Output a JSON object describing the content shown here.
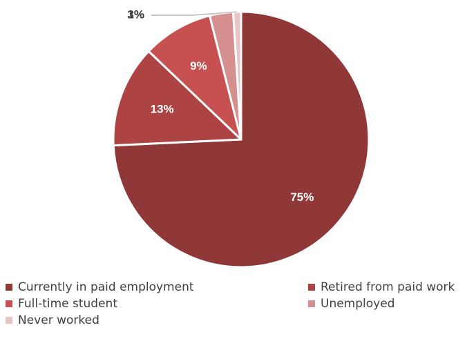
{
  "chart_data": {
    "type": "pie",
    "categories": [
      "Currently in paid employment",
      "Retired from paid work",
      "Full-time student",
      "Unemployed",
      "Never worked"
    ],
    "values": [
      75,
      13,
      9,
      3,
      1
    ],
    "data_labels": [
      "75%",
      "13%",
      "9%",
      "3%",
      "1%"
    ],
    "colors": [
      "#8f3837",
      "#ad4342",
      "#c65150",
      "#d58f8e",
      "#e8c4c4"
    ],
    "start": "12 o'clock",
    "direction": "clockwise",
    "legend_position": "bottom",
    "title": ""
  },
  "legend": {
    "items": [
      {
        "label": "Currently in paid employment",
        "color": "#8f3837"
      },
      {
        "label": "Retired from paid work",
        "color": "#ad4342"
      },
      {
        "label": "Full-time student",
        "color": "#c65150"
      },
      {
        "label": "Unemployed",
        "color": "#d58f8e"
      },
      {
        "label": "Never worked",
        "color": "#e8c4c4"
      }
    ]
  }
}
